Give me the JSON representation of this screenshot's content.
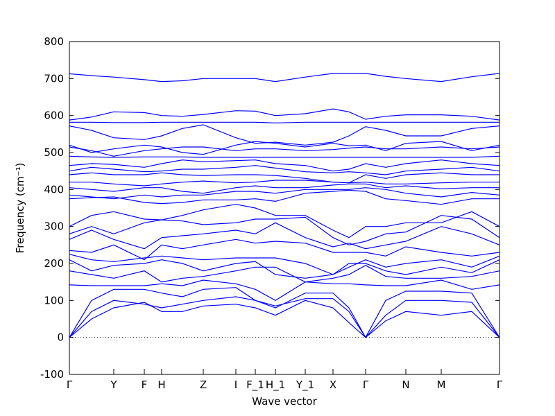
{
  "chart_data": {
    "type": "line",
    "xlabel": "Wave vector",
    "ylabel": "Frequency (cm⁻¹)",
    "color": "#0000ff",
    "xlim": [
      0,
      620
    ],
    "ylim": [
      -100,
      800
    ],
    "xticks": [
      {
        "value": 0,
        "label": "Γ"
      },
      {
        "value": 64,
        "label": "Y"
      },
      {
        "value": 108,
        "label": "F"
      },
      {
        "value": 133,
        "label": "H"
      },
      {
        "value": 193,
        "label": "Z"
      },
      {
        "value": 240,
        "label": "I"
      },
      {
        "value": 268,
        "label": "F_1"
      },
      {
        "value": 297,
        "label": "H_1"
      },
      {
        "value": 340,
        "label": "Y_1"
      },
      {
        "value": 380,
        "label": "X"
      },
      {
        "value": 427,
        "label": "Γ"
      },
      {
        "value": 485,
        "label": "N"
      },
      {
        "value": 536,
        "label": "M"
      },
      {
        "value": 620,
        "label": "Γ"
      }
    ],
    "yticks": [
      -100,
      0,
      100,
      200,
      300,
      400,
      500,
      600,
      700,
      800
    ],
    "x": [
      0,
      32,
      64,
      108,
      133,
      163,
      193,
      240,
      268,
      297,
      340,
      380,
      403,
      427,
      456,
      485,
      536,
      580,
      620
    ],
    "series": [
      {
        "values": [
          713,
          708,
          704,
          697,
          692,
          694,
          700,
          700,
          700,
          692,
          704,
          714,
          714,
          714,
          706,
          700,
          692,
          705,
          714
        ]
      },
      {
        "values": [
          588,
          596,
          610,
          608,
          600,
          598,
          603,
          613,
          612,
          600,
          605,
          618,
          610,
          590,
          598,
          602,
          602,
          598,
          588
        ]
      },
      {
        "values": [
          582,
          582,
          581,
          581,
          582,
          582,
          582,
          582,
          582,
          580,
          582,
          582,
          582,
          582,
          582,
          582,
          582,
          582,
          582
        ]
      },
      {
        "values": [
          572,
          560,
          540,
          535,
          545,
          565,
          575,
          540,
          525,
          528,
          520,
          528,
          545,
          570,
          560,
          545,
          545,
          565,
          572
        ]
      },
      {
        "values": [
          520,
          500,
          510,
          520,
          515,
          500,
          495,
          520,
          530,
          525,
          515,
          525,
          518,
          520,
          505,
          525,
          530,
          505,
          520
        ]
      },
      {
        "values": [
          515,
          505,
          490,
          505,
          510,
          515,
          515,
          505,
          510,
          510,
          505,
          508,
          512,
          515,
          510,
          510,
          515,
          510,
          515
        ]
      },
      {
        "values": [
          490,
          488,
          487,
          488,
          488,
          488,
          487,
          487,
          487,
          487,
          487,
          487,
          487,
          487,
          487,
          487,
          487,
          487,
          490
        ]
      },
      {
        "values": [
          465,
          470,
          468,
          460,
          470,
          480,
          475,
          478,
          480,
          470,
          465,
          450,
          455,
          470,
          460,
          470,
          480,
          470,
          465
        ]
      },
      {
        "values": [
          450,
          460,
          455,
          448,
          450,
          455,
          455,
          460,
          465,
          458,
          448,
          445,
          448,
          445,
          440,
          450,
          455,
          460,
          450
        ]
      },
      {
        "values": [
          440,
          445,
          440,
          440,
          445,
          440,
          438,
          440,
          440,
          438,
          430,
          420,
          418,
          440,
          430,
          440,
          445,
          440,
          440
        ]
      },
      {
        "values": [
          420,
          420,
          415,
          410,
          415,
          420,
          423,
          418,
          420,
          425,
          425,
          420,
          418,
          420,
          415,
          415,
          418,
          420,
          420
        ]
      },
      {
        "values": [
          405,
          400,
          395,
          405,
          405,
          395,
          390,
          405,
          410,
          405,
          405,
          412,
          415,
          415,
          405,
          410,
          402,
          405,
          405
        ]
      },
      {
        "values": [
          385,
          380,
          375,
          385,
          380,
          385,
          385,
          395,
          395,
          390,
          400,
          400,
          400,
          405,
          400,
          390,
          380,
          392,
          385
        ]
      },
      {
        "values": [
          375,
          378,
          380,
          365,
          362,
          365,
          372,
          372,
          375,
          368,
          390,
          395,
          398,
          395,
          375,
          370,
          360,
          375,
          375
        ]
      },
      {
        "values": [
          300,
          330,
          340,
          320,
          318,
          330,
          345,
          360,
          350,
          330,
          330,
          290,
          270,
          300,
          300,
          310,
          310,
          340,
          300
        ]
      },
      {
        "values": [
          280,
          300,
          280,
          310,
          318,
          315,
          305,
          310,
          320,
          320,
          325,
          270,
          250,
          260,
          280,
          285,
          330,
          320,
          270
        ]
      },
      {
        "values": [
          265,
          290,
          265,
          240,
          270,
          275,
          280,
          290,
          280,
          310,
          270,
          245,
          255,
          240,
          250,
          260,
          300,
          280,
          250
        ]
      },
      {
        "values": [
          235,
          230,
          250,
          210,
          250,
          240,
          250,
          265,
          255,
          260,
          255,
          230,
          230,
          230,
          220,
          245,
          230,
          220,
          230
        ]
      },
      {
        "values": [
          225,
          210,
          205,
          215,
          220,
          215,
          210,
          215,
          215,
          215,
          200,
          170,
          190,
          210,
          190,
          200,
          210,
          190,
          220
        ]
      },
      {
        "values": [
          210,
          180,
          195,
          200,
          210,
          200,
          180,
          200,
          205,
          170,
          160,
          170,
          200,
          200,
          180,
          170,
          190,
          175,
          210
        ]
      },
      {
        "values": [
          180,
          170,
          160,
          180,
          150,
          160,
          165,
          180,
          190,
          190,
          150,
          160,
          170,
          195,
          165,
          160,
          160,
          165,
          180
        ]
      },
      {
        "values": [
          142,
          140,
          140,
          140,
          145,
          140,
          155,
          145,
          130,
          100,
          150,
          145,
          145,
          142,
          140,
          140,
          155,
          130,
          142
        ]
      },
      {
        "values": [
          0,
          100,
          130,
          130,
          120,
          110,
          130,
          135,
          100,
          80,
          120,
          120,
          80,
          0,
          100,
          125,
          125,
          120,
          0
        ]
      },
      {
        "values": [
          0,
          70,
          100,
          90,
          80,
          90,
          100,
          110,
          100,
          85,
          105,
          105,
          70,
          0,
          60,
          100,
          100,
          95,
          0
        ]
      },
      {
        "values": [
          0,
          50,
          80,
          95,
          70,
          70,
          85,
          90,
          80,
          60,
          100,
          80,
          40,
          0,
          45,
          70,
          60,
          70,
          0
        ]
      }
    ]
  }
}
